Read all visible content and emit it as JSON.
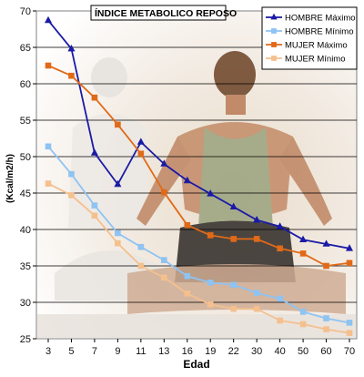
{
  "chart_data": {
    "type": "line",
    "title": "ÍNDICE METABOLICO REPOSO",
    "xlabel": "Edad",
    "ylabel": "(Kcal/m2/h)",
    "categories": [
      "3",
      "5",
      "7",
      "9",
      "11",
      "13",
      "16",
      "19",
      "22",
      "30",
      "40",
      "50",
      "60",
      "70"
    ],
    "ylim": [
      25,
      70
    ],
    "yticks": [
      25,
      30,
      35,
      40,
      45,
      50,
      55,
      60,
      65,
      70
    ],
    "grid": true,
    "legend_position": "top-right",
    "series": [
      {
        "name": "HOMBRE Máximo",
        "color": "#1a1aa6",
        "marker": "triangle",
        "values": [
          68.7,
          64.8,
          50.5,
          46.2,
          52.0,
          49.0,
          46.7,
          44.9,
          43.1,
          41.3,
          40.4,
          38.6,
          38.0,
          37.4
        ]
      },
      {
        "name": "HOMBRE Mínimo",
        "color": "#8ec3f2",
        "marker": "square",
        "values": [
          51.4,
          47.6,
          43.3,
          39.5,
          37.6,
          35.8,
          33.6,
          32.7,
          32.4,
          31.3,
          30.5,
          28.7,
          27.8,
          27.2
        ]
      },
      {
        "name": "MUJER Máximo",
        "color": "#e06a18",
        "marker": "square",
        "values": [
          62.5,
          61.1,
          58.1,
          54.4,
          50.4,
          45.1,
          40.6,
          39.2,
          38.7,
          38.7,
          37.4,
          36.7,
          35.0,
          35.4
        ]
      },
      {
        "name": "MUJER Mínimo",
        "color": "#f4c08e",
        "marker": "square",
        "values": [
          46.3,
          44.7,
          41.9,
          38.1,
          35.0,
          33.4,
          31.2,
          29.7,
          29.1,
          29.1,
          27.5,
          27.0,
          26.3,
          25.8
        ]
      }
    ]
  }
}
